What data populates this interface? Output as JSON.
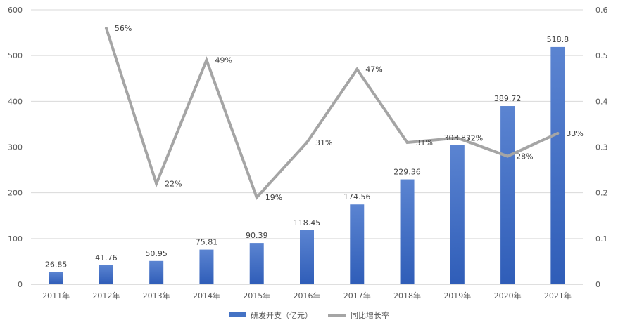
{
  "chart_data": {
    "type": "bar",
    "categories": [
      "2011年",
      "2012年",
      "2013年",
      "2014年",
      "2015年",
      "2016年",
      "2017年",
      "2018年",
      "2019年",
      "2020年",
      "2021年"
    ],
    "series": [
      {
        "name": "研发开支（亿元）",
        "type": "bar",
        "axis": "left",
        "values": [
          26.85,
          41.76,
          50.95,
          75.81,
          90.39,
          118.45,
          174.56,
          229.36,
          303.87,
          389.72,
          518.8
        ],
        "labels": [
          "26.85",
          "41.76",
          "50.95",
          "75.81",
          "90.39",
          "118.45",
          "174.56",
          "229.36",
          "303.87",
          "389.72",
          "518.8"
        ],
        "color": "#4472C4"
      },
      {
        "name": "同比增长率",
        "type": "line",
        "axis": "right",
        "values": [
          null,
          0.56,
          0.22,
          0.49,
          0.19,
          0.31,
          0.47,
          0.31,
          0.32,
          0.28,
          0.33
        ],
        "labels": [
          "",
          "56%",
          "22%",
          "49%",
          "19%",
          "31%",
          "47%",
          "31%",
          "32%",
          "28%",
          "33%"
        ],
        "color": "#A5A5A5"
      }
    ],
    "y_left": {
      "min": 0,
      "max": 600,
      "ticks": [
        "0",
        "100",
        "200",
        "300",
        "400",
        "500",
        "600"
      ]
    },
    "y_right": {
      "min": 0,
      "max": 0.6,
      "ticks": [
        "0",
        "0.1",
        "0.2",
        "0.3",
        "0.4",
        "0.5",
        "0.6"
      ]
    },
    "grid": true,
    "legend_position": "bottom"
  }
}
